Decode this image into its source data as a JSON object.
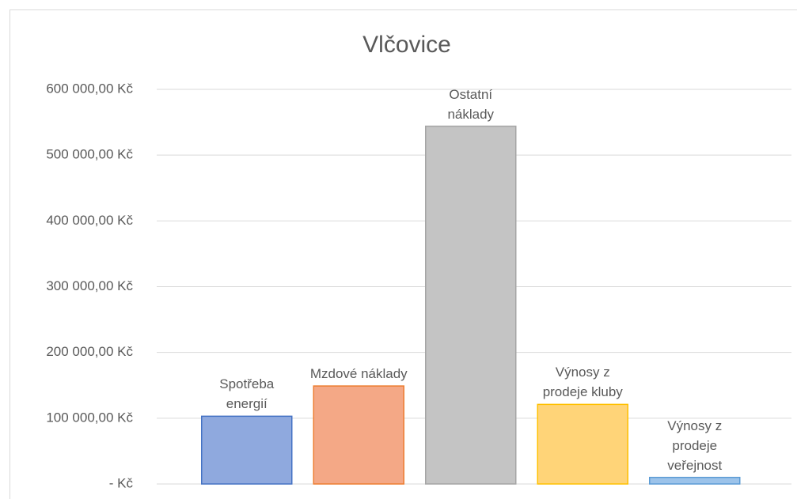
{
  "chart_data": {
    "type": "bar",
    "title": "Vlčovice",
    "categories": [
      "Spotřeba energií",
      "Mzdové náklady",
      "Ostatní náklady",
      "Výnosy z prodeje kluby",
      "Výnosy z prodeje veřejnost"
    ],
    "values": [
      103000,
      149000,
      544000,
      121000,
      10000
    ],
    "colors": [
      "#8fa9de",
      "#f4a886",
      "#c4c4c4",
      "#ffd478",
      "#9cc3ea"
    ],
    "ylim": [
      0,
      600000
    ],
    "yticks": [
      {
        "value": 0,
        "label": "-  Kč"
      },
      {
        "value": 100000,
        "label": "100 000,00 Kč"
      },
      {
        "value": 200000,
        "label": "200 000,00 Kč"
      },
      {
        "value": 300000,
        "label": "300 000,00 Kč"
      },
      {
        "value": 400000,
        "label": "400 000,00 Kč"
      },
      {
        "value": 500000,
        "label": "500 000,00 Kč"
      },
      {
        "value": 600000,
        "label": "600 000,00 Kč"
      }
    ],
    "grid": true
  }
}
